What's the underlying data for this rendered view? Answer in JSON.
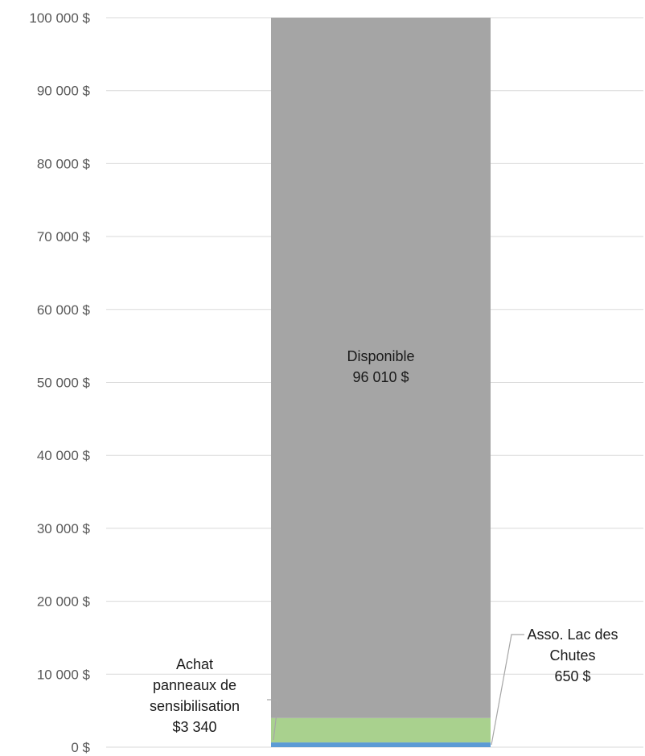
{
  "chart_data": {
    "type": "bar",
    "stacked": true,
    "categories": [
      ""
    ],
    "ylim": [
      0,
      100000
    ],
    "ytick_values": [
      0,
      10000,
      20000,
      30000,
      40000,
      50000,
      60000,
      70000,
      80000,
      90000,
      100000
    ],
    "ytick_labels": [
      "0 $",
      "10 000 $",
      "20 000 $",
      "30 000 $",
      "40 000 $",
      "50 000 $",
      "60 000 $",
      "70 000 $",
      "80 000 $",
      "90 000 $",
      "100 000 $"
    ],
    "grid": true,
    "series": [
      {
        "id": "asso",
        "value": 650,
        "color": "#5B9BD5",
        "label_lines": [
          "Asso. Lac des",
          "Chutes",
          "650 $"
        ]
      },
      {
        "id": "achat",
        "value": 3340,
        "color": "#A9D18E",
        "label_lines": [
          "Achat",
          "panneaux de",
          "sensibilisation",
          "$3 340"
        ]
      },
      {
        "id": "dispo",
        "value": 96010,
        "color": "#A5A5A5",
        "label_lines": [
          "Disponible",
          "96 010 $"
        ]
      }
    ]
  }
}
